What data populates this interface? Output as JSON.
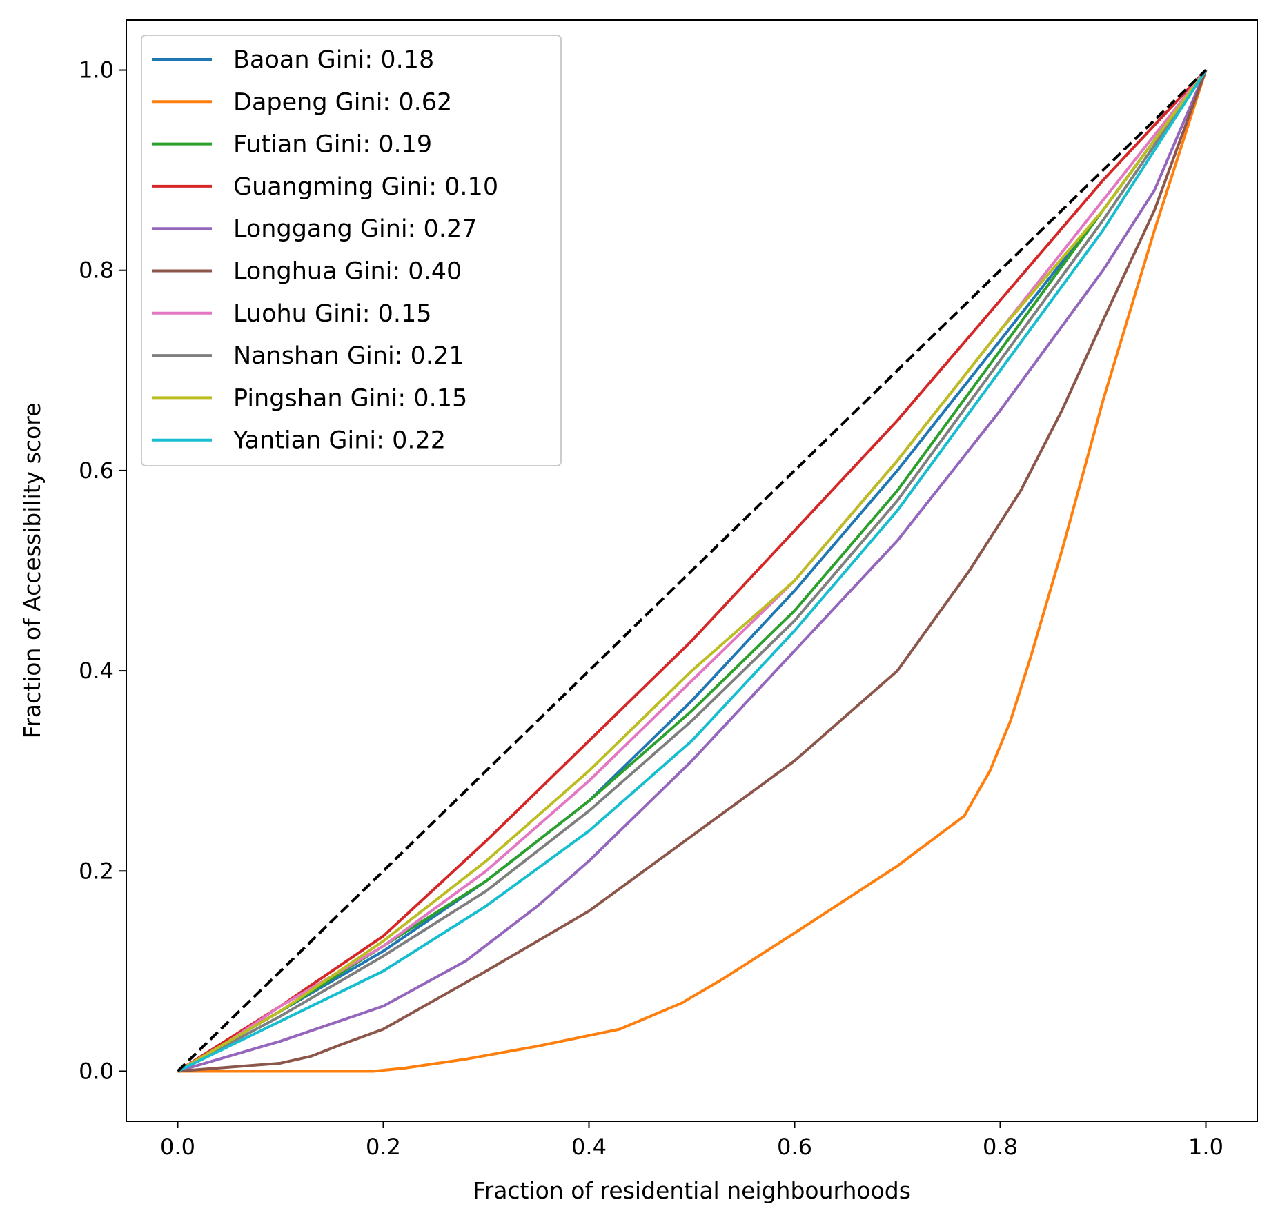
{
  "chart_data": {
    "type": "line",
    "xlabel": "Fraction of residential neighbourhoods",
    "ylabel": "Fraction of Accessibility score",
    "xlim": [
      -0.05,
      1.05
    ],
    "ylim": [
      -0.05,
      1.05
    ],
    "xticks": [
      0.0,
      0.2,
      0.4,
      0.6,
      0.8,
      1.0
    ],
    "yticks": [
      0.0,
      0.2,
      0.4,
      0.6,
      0.8,
      1.0
    ],
    "xtick_labels": [
      "0.0",
      "0.2",
      "0.4",
      "0.6",
      "0.8",
      "1.0"
    ],
    "ytick_labels": [
      "0.0",
      "0.2",
      "0.4",
      "0.6",
      "0.8",
      "1.0"
    ],
    "grid": false,
    "legend_position": "upper-left",
    "equality_line": {
      "style": "dashed",
      "color": "#000000",
      "points": [
        [
          0,
          0
        ],
        [
          1,
          1
        ]
      ]
    },
    "series": [
      {
        "name": "Baoan Gini: 0.18",
        "color": "#1f77b4",
        "points": [
          [
            0,
            0
          ],
          [
            0.1,
            0.06
          ],
          [
            0.2,
            0.12
          ],
          [
            0.3,
            0.19
          ],
          [
            0.4,
            0.27
          ],
          [
            0.5,
            0.37
          ],
          [
            0.6,
            0.48
          ],
          [
            0.7,
            0.6
          ],
          [
            0.8,
            0.73
          ],
          [
            0.9,
            0.86
          ],
          [
            1.0,
            1.0
          ]
        ]
      },
      {
        "name": "Dapeng Gini: 0.62",
        "color": "#ff7f0e",
        "points": [
          [
            0,
            0
          ],
          [
            0.19,
            0
          ],
          [
            0.22,
            0.003
          ],
          [
            0.28,
            0.012
          ],
          [
            0.35,
            0.025
          ],
          [
            0.43,
            0.042
          ],
          [
            0.49,
            0.068
          ],
          [
            0.53,
            0.092
          ],
          [
            0.6,
            0.138
          ],
          [
            0.7,
            0.205
          ],
          [
            0.765,
            0.255
          ],
          [
            0.79,
            0.3
          ],
          [
            0.81,
            0.35
          ],
          [
            0.83,
            0.415
          ],
          [
            0.86,
            0.52
          ],
          [
            0.9,
            0.67
          ],
          [
            0.95,
            0.84
          ],
          [
            1.0,
            1.0
          ]
        ]
      },
      {
        "name": "Futian Gini: 0.19",
        "color": "#2ca02c",
        "points": [
          [
            0,
            0
          ],
          [
            0.1,
            0.06
          ],
          [
            0.2,
            0.125
          ],
          [
            0.3,
            0.19
          ],
          [
            0.4,
            0.27
          ],
          [
            0.5,
            0.36
          ],
          [
            0.6,
            0.46
          ],
          [
            0.7,
            0.58
          ],
          [
            0.8,
            0.72
          ],
          [
            0.9,
            0.86
          ],
          [
            1.0,
            1.0
          ]
        ]
      },
      {
        "name": "Guangming Gini: 0.10",
        "color": "#d62728",
        "points": [
          [
            0,
            0
          ],
          [
            0.1,
            0.065
          ],
          [
            0.2,
            0.135
          ],
          [
            0.3,
            0.23
          ],
          [
            0.4,
            0.33
          ],
          [
            0.5,
            0.43
          ],
          [
            0.6,
            0.54
          ],
          [
            0.7,
            0.65
          ],
          [
            0.8,
            0.77
          ],
          [
            0.9,
            0.89
          ],
          [
            1.0,
            1.0
          ]
        ]
      },
      {
        "name": "Longgang Gini: 0.27",
        "color": "#9467bd",
        "points": [
          [
            0,
            0
          ],
          [
            0.1,
            0.03
          ],
          [
            0.2,
            0.065
          ],
          [
            0.28,
            0.11
          ],
          [
            0.35,
            0.165
          ],
          [
            0.4,
            0.21
          ],
          [
            0.5,
            0.31
          ],
          [
            0.6,
            0.42
          ],
          [
            0.7,
            0.53
          ],
          [
            0.8,
            0.66
          ],
          [
            0.9,
            0.8
          ],
          [
            0.95,
            0.88
          ],
          [
            1.0,
            1.0
          ]
        ]
      },
      {
        "name": "Longhua Gini: 0.40",
        "color": "#8c564b",
        "points": [
          [
            0,
            0
          ],
          [
            0.1,
            0.008
          ],
          [
            0.13,
            0.015
          ],
          [
            0.16,
            0.027
          ],
          [
            0.2,
            0.042
          ],
          [
            0.3,
            0.1
          ],
          [
            0.4,
            0.16
          ],
          [
            0.5,
            0.235
          ],
          [
            0.6,
            0.31
          ],
          [
            0.7,
            0.4
          ],
          [
            0.77,
            0.5
          ],
          [
            0.82,
            0.58
          ],
          [
            0.86,
            0.66
          ],
          [
            0.9,
            0.75
          ],
          [
            0.95,
            0.86
          ],
          [
            1.0,
            1.0
          ]
        ]
      },
      {
        "name": "Luohu Gini: 0.15",
        "color": "#e377c2",
        "points": [
          [
            0,
            0
          ],
          [
            0.05,
            0.03
          ],
          [
            0.1,
            0.065
          ],
          [
            0.2,
            0.125
          ],
          [
            0.3,
            0.2
          ],
          [
            0.4,
            0.29
          ],
          [
            0.5,
            0.39
          ],
          [
            0.6,
            0.49
          ],
          [
            0.7,
            0.61
          ],
          [
            0.8,
            0.74
          ],
          [
            0.9,
            0.87
          ],
          [
            1.0,
            1.0
          ]
        ]
      },
      {
        "name": "Nanshan Gini: 0.21",
        "color": "#7f7f7f",
        "points": [
          [
            0,
            0
          ],
          [
            0.1,
            0.055
          ],
          [
            0.2,
            0.115
          ],
          [
            0.3,
            0.18
          ],
          [
            0.4,
            0.26
          ],
          [
            0.5,
            0.35
          ],
          [
            0.6,
            0.45
          ],
          [
            0.7,
            0.57
          ],
          [
            0.8,
            0.71
          ],
          [
            0.9,
            0.85
          ],
          [
            1.0,
            1.0
          ]
        ]
      },
      {
        "name": "Pingshan Gini: 0.15",
        "color": "#bcbd22",
        "points": [
          [
            0,
            0
          ],
          [
            0.1,
            0.06
          ],
          [
            0.2,
            0.13
          ],
          [
            0.3,
            0.21
          ],
          [
            0.4,
            0.3
          ],
          [
            0.5,
            0.4
          ],
          [
            0.6,
            0.49
          ],
          [
            0.7,
            0.61
          ],
          [
            0.8,
            0.74
          ],
          [
            0.9,
            0.86
          ],
          [
            1.0,
            1.0
          ]
        ]
      },
      {
        "name": "Yantian Gini: 0.22",
        "color": "#17becf",
        "points": [
          [
            0,
            0
          ],
          [
            0.1,
            0.05
          ],
          [
            0.2,
            0.1
          ],
          [
            0.3,
            0.165
          ],
          [
            0.4,
            0.24
          ],
          [
            0.5,
            0.33
          ],
          [
            0.6,
            0.44
          ],
          [
            0.7,
            0.56
          ],
          [
            0.8,
            0.7
          ],
          [
            0.9,
            0.84
          ],
          [
            1.0,
            1.0
          ]
        ]
      }
    ]
  }
}
